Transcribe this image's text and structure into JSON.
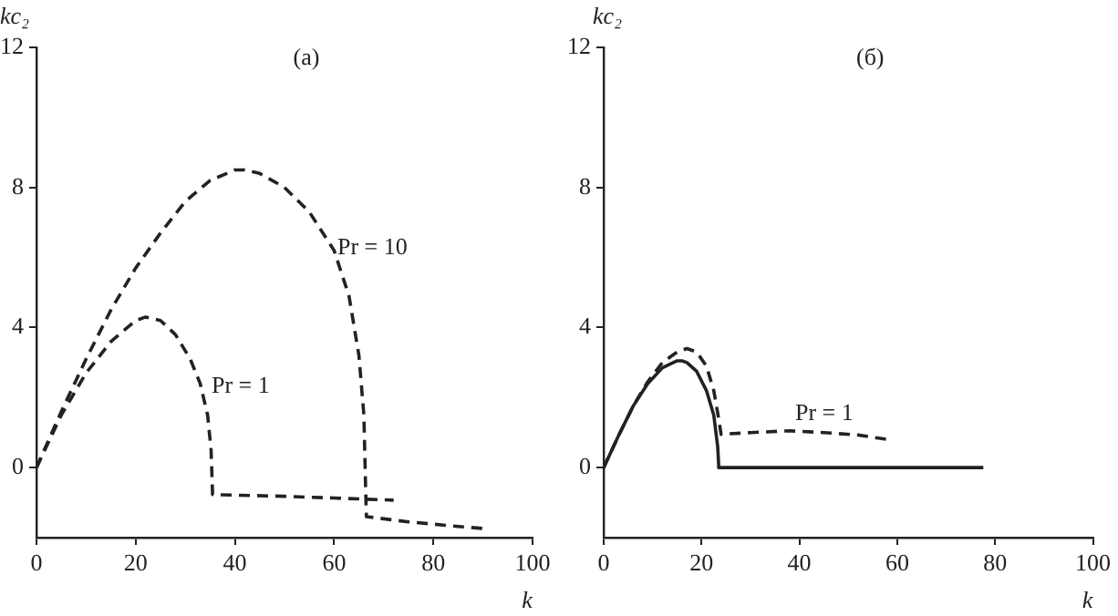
{
  "chart_data": [
    {
      "type": "line",
      "title": "(a)",
      "xlabel": "k",
      "ylabel": "kc₂",
      "xlim": [
        0,
        100
      ],
      "xticks": [
        0,
        20,
        40,
        60,
        80,
        100
      ],
      "ylim": [
        -2,
        12
      ],
      "yticks": [
        0,
        4,
        8,
        12
      ],
      "grid": false,
      "legend": false,
      "marker": "none",
      "series": [
        {
          "name": "Pr = 1",
          "color": "#222222",
          "line_style": "dashed",
          "x": [
            0,
            5,
            10,
            15,
            20,
            22,
            25,
            28,
            31,
            33,
            34.5,
            35.2,
            35.5,
            50,
            60,
            72
          ],
          "values": [
            0,
            1.5,
            2.7,
            3.6,
            4.2,
            4.3,
            4.2,
            3.8,
            3.1,
            2.4,
            1.5,
            0.5,
            -0.77,
            -0.82,
            -0.87,
            -0.93
          ]
        },
        {
          "name": "Pr = 10",
          "color": "#222222",
          "line_style": "dashed",
          "x": [
            0,
            5,
            10,
            15,
            20,
            25,
            30,
            35,
            40,
            42,
            45,
            50,
            55,
            60,
            63,
            65,
            66,
            66.3,
            66.5,
            75,
            85,
            91
          ],
          "values": [
            0,
            1.6,
            3.1,
            4.5,
            5.7,
            6.7,
            7.6,
            8.2,
            8.5,
            8.5,
            8.4,
            8.0,
            7.3,
            6.2,
            4.9,
            3.2,
            1.5,
            -0.3,
            -1.4,
            -1.55,
            -1.68,
            -1.75
          ]
        }
      ]
    },
    {
      "type": "line",
      "title": "(б)",
      "xlabel": "k",
      "ylabel": "kc₂",
      "xlim": [
        0,
        100
      ],
      "xticks": [
        0,
        20,
        40,
        60,
        80,
        100
      ],
      "ylim": [
        -2,
        12
      ],
      "yticks": [
        0,
        4,
        8,
        12
      ],
      "grid": false,
      "legend": false,
      "marker": "none",
      "series": [
        {
          "color": "#222222",
          "line_style": "solid",
          "x": [
            0,
            3,
            6,
            9,
            12,
            15,
            16,
            17,
            19,
            21,
            22.5,
            23.3,
            23.5,
            23.5,
            77.6
          ],
          "values": [
            0,
            0.9,
            1.75,
            2.4,
            2.85,
            3.05,
            3.05,
            3.0,
            2.75,
            2.2,
            1.5,
            0.6,
            0.1,
            0,
            0
          ]
        },
        {
          "name": "Pr = 1",
          "color": "#222222",
          "line_style": "dashed",
          "x": [
            0,
            3,
            6,
            9,
            12,
            15,
            17,
            19,
            21,
            22.5,
            23.5,
            24,
            30,
            38,
            45,
            52,
            58.2
          ],
          "values": [
            0,
            0.9,
            1.75,
            2.45,
            3.0,
            3.3,
            3.4,
            3.3,
            2.9,
            2.2,
            1.4,
            0.95,
            1.0,
            1.05,
            1.0,
            0.93,
            0.8
          ]
        }
      ]
    }
  ]
}
